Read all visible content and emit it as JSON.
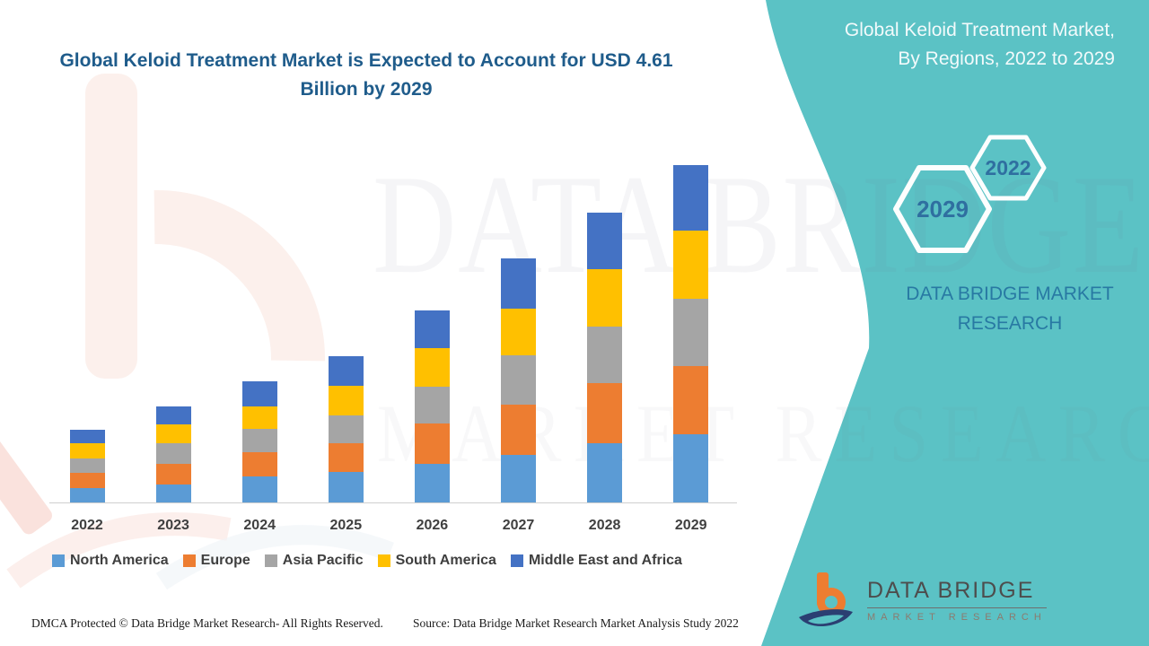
{
  "colors": {
    "teal_panel": "#5BC2C5",
    "title_blue": "#1F5C8B",
    "hex_number_blue": "#2F6FA0",
    "brand_text_blue": "#2879A3",
    "legend_text": "#3F3F3F",
    "logo_orange": "#ED7D31",
    "logo_navy": "#2B3F72",
    "north_america": "#5B9BD5",
    "europe": "#ED7D31",
    "asia_pacific": "#A5A5A5",
    "south_america": "#FFC000",
    "middle_east_africa": "#4472C4"
  },
  "chart_title": "Global Keloid Treatment Market is Expected to Account for USD 4.61 Billion by 2029",
  "chart_data": {
    "type": "bar",
    "stacked": true,
    "title": "Global Keloid Treatment Market is Expected to Account for USD 4.61 Billion by 2029",
    "unit": "USD Billion",
    "categories": [
      "2022",
      "2023",
      "2024",
      "2025",
      "2026",
      "2027",
      "2028",
      "2029"
    ],
    "series": [
      {
        "name": "North America",
        "color": "#5B9BD5",
        "values": [
          0.19,
          0.25,
          0.35,
          0.42,
          0.52,
          0.65,
          0.81,
          0.93
        ]
      },
      {
        "name": "Europe",
        "color": "#ED7D31",
        "values": [
          0.21,
          0.27,
          0.34,
          0.39,
          0.55,
          0.68,
          0.82,
          0.93
        ]
      },
      {
        "name": "Asia Pacific",
        "color": "#A5A5A5",
        "values": [
          0.2,
          0.29,
          0.31,
          0.37,
          0.51,
          0.68,
          0.76,
          0.91
        ]
      },
      {
        "name": "South America",
        "color": "#FFC000",
        "values": [
          0.21,
          0.25,
          0.31,
          0.41,
          0.52,
          0.63,
          0.79,
          0.93
        ]
      },
      {
        "name": "Middle East and Africa",
        "color": "#4472C4",
        "values": [
          0.18,
          0.25,
          0.34,
          0.4,
          0.52,
          0.68,
          0.77,
          0.9
        ]
      }
    ],
    "totals_by_year": [
      0.99,
      1.31,
      1.65,
      1.99,
      2.62,
      3.32,
      3.95,
      4.6
    ],
    "ylim": [
      0,
      4.7
    ],
    "gridlines": false,
    "y_axis_visible": false,
    "legend_position": "bottom"
  },
  "side_panel": {
    "title": "Global Keloid Treatment Market, By Regions, 2022 to 2029",
    "hexagon_small_label": "2022",
    "hexagon_large_label": "2029",
    "brand_text": "DATA BRIDGE MARKET RESEARCH"
  },
  "logo": {
    "title": "DATA BRIDGE",
    "subtitle": "MARKET RESEARCH"
  },
  "watermark": {
    "line1": "DATA BRIDGE",
    "line2": "MARKET RESEARCH"
  },
  "footer": {
    "left": "DMCA Protected © Data Bridge Market Research- All Rights Reserved.",
    "right": "Source: Data Bridge Market Research Market Analysis Study 2022"
  }
}
